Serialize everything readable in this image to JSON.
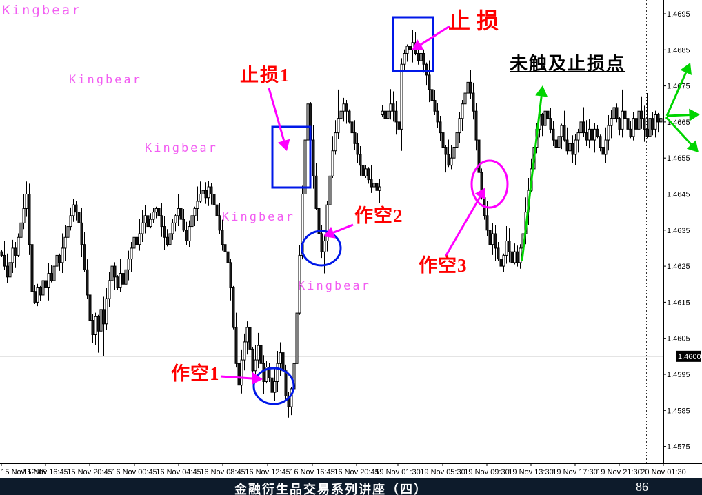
{
  "watermark": {
    "text": "Kingbear",
    "color": "#f25ef2"
  },
  "annotations": {
    "stop_loss": "止损",
    "stop_loss_1": "止损1",
    "short_1": "作空1",
    "short_2": "作空2",
    "short_3": "作空3",
    "not_hit": "未触及止损点"
  },
  "footer": {
    "title": "金融衍生品交易系列讲座（四）",
    "page": "86"
  },
  "colors": {
    "annotation_red": "#ff0000",
    "arrow_magenta": "#ff00ff",
    "shape_blue": "#0018e8",
    "arrow_green": "#00d400",
    "grid_gray": "#b8b8b8",
    "axis_black": "#000000",
    "footer_bg": "#0d1b2b",
    "highlight_bg": "#000000",
    "highlight_text": "#ffffff"
  },
  "chart_data": {
    "type": "candlestick",
    "title": "",
    "ylim": [
      1.4575,
      1.4695
    ],
    "grid": "day-separators-dashed",
    "legend_position": "none",
    "current_price": "1.4600",
    "price_axis_labels": [
      "1.4695",
      "1.4685",
      "1.4675",
      "1.4665",
      "1.4655",
      "1.4645",
      "1.4635",
      "1.4625",
      "1.4615",
      "1.4605",
      "1.4595",
      "1.4585",
      "1.4575"
    ],
    "time_labels": [
      "15 Nov 12:45",
      "15 Nov 16:45",
      "15 Nov 20:45",
      "16 Nov 00:45",
      "16 Nov 04:45",
      "16 Nov 08:45",
      "16 Nov 12:45",
      "16 Nov 16:45",
      "16 Nov 20:45",
      "19 Nov 01:30",
      "19 Nov 05:30",
      "19 Nov 09:30",
      "19 Nov 13:30",
      "19 Nov 17:30",
      "19 Nov 21:30",
      "20 Nov 01:30"
    ],
    "base_price": 1.45,
    "pip": 0.0001,
    "close_pips": [
      128,
      125,
      122,
      126,
      130,
      128,
      133,
      137,
      141,
      145,
      131,
      118,
      115,
      119,
      117,
      121,
      119,
      123,
      121,
      125,
      128,
      126,
      130,
      133,
      136,
      139,
      142,
      140,
      137,
      131,
      124,
      117,
      110,
      106,
      111,
      107,
      113,
      109,
      116,
      121,
      125,
      122,
      119,
      123,
      120,
      124,
      127,
      130,
      133,
      131,
      134,
      137,
      139,
      136,
      138,
      140,
      141,
      139,
      136,
      133,
      131,
      134,
      137,
      139,
      141,
      138,
      135,
      132,
      136,
      139,
      141,
      143,
      145,
      146,
      144,
      147,
      145,
      142,
      139,
      135,
      131,
      129,
      126,
      119,
      108,
      98,
      92,
      99,
      104,
      108,
      102,
      96,
      99,
      103,
      98,
      93,
      97,
      94,
      90,
      93,
      98,
      101,
      96,
      89,
      86,
      91,
      98,
      112,
      128,
      145,
      160,
      170,
      160,
      150,
      141,
      134,
      129,
      132,
      142,
      150,
      157,
      162,
      166,
      168,
      170,
      168,
      165,
      162,
      159,
      156,
      153,
      150,
      152,
      149,
      147,
      148,
      146,
      147,
      168,
      166,
      168,
      170,
      168,
      165,
      163,
      181,
      184,
      186,
      185,
      187,
      184,
      182,
      184,
      181,
      178,
      174,
      171,
      168,
      165,
      162,
      158,
      156,
      153,
      155,
      158,
      162,
      166,
      170,
      173,
      176,
      173,
      168,
      160,
      151,
      144,
      139,
      135,
      131,
      134,
      130,
      127,
      125,
      128,
      132,
      129,
      126,
      129,
      126,
      130,
      134,
      140,
      146,
      152,
      158,
      163,
      167,
      164,
      168,
      166,
      163,
      160,
      158,
      161,
      164,
      160,
      157,
      159,
      156,
      160,
      162,
      165,
      162,
      160,
      163,
      160,
      163,
      161,
      158,
      156,
      160,
      164,
      166,
      169,
      166,
      163,
      168,
      166,
      163,
      161,
      166,
      163,
      168,
      166,
      163,
      161,
      166,
      163,
      167,
      165,
      166
    ],
    "overrides": {
      "11": {
        "low": 104
      },
      "32": {
        "low": 104
      },
      "35": {
        "low": 101
      },
      "37": {
        "low": 100
      },
      "86": {
        "low": 80
      },
      "104": {
        "low": 83
      },
      "111": {
        "high": 174
      },
      "117": {
        "low": 123
      },
      "122": {
        "high": 174
      },
      "138": {
        "open": 167
      },
      "145": {
        "low": 157
      },
      "148": {
        "high": 190
      },
      "161": {
        "low": 151
      },
      "169": {
        "high": 179
      },
      "177": {
        "low": 122
      },
      "225": {
        "high": 174
      },
      "234": {
        "high": 173
      }
    }
  }
}
